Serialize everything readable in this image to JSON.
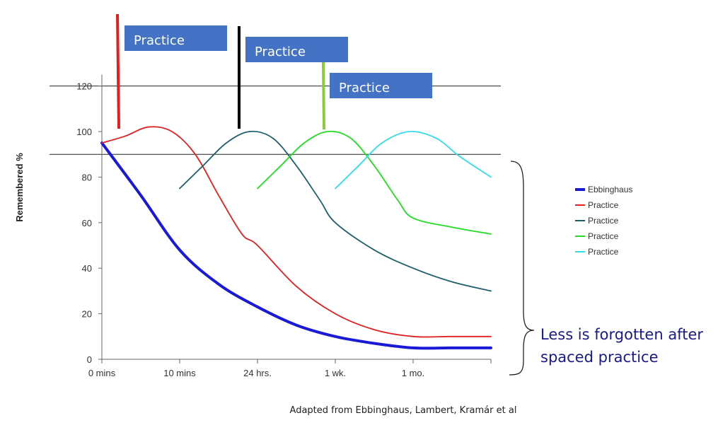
{
  "chart_data": {
    "type": "line",
    "title": "",
    "xlabel": "",
    "ylabel": "Remembered %",
    "x_categories": [
      "0 mins",
      "10 mins",
      "24 hrs.",
      "1 wk.",
      "1 mo."
    ],
    "ylim": [
      0,
      125
    ],
    "y_ticks": [
      0,
      20,
      40,
      60,
      80,
      100,
      120
    ],
    "reference_lines": [
      120,
      90
    ],
    "legend_position": "right",
    "series": [
      {
        "name": "Ebbinghaus",
        "color": "#1a1ad6",
        "points": [
          [
            0,
            95
          ],
          [
            0.5,
            72
          ],
          [
            1,
            48
          ],
          [
            1.5,
            33
          ],
          [
            2,
            23
          ],
          [
            2.5,
            15
          ],
          [
            3,
            10
          ],
          [
            3.5,
            7
          ],
          [
            4,
            5
          ],
          [
            4.5,
            5
          ],
          [
            5,
            5
          ]
        ]
      },
      {
        "name": "Practice",
        "color": "#e02020",
        "points": [
          [
            0,
            95
          ],
          [
            0.3,
            98
          ],
          [
            0.6,
            102
          ],
          [
            0.9,
            100
          ],
          [
            1.2,
            90
          ],
          [
            1.5,
            72
          ],
          [
            1.8,
            55
          ],
          [
            2,
            50
          ],
          [
            2.5,
            32
          ],
          [
            3,
            20
          ],
          [
            3.5,
            13
          ],
          [
            4,
            10
          ],
          [
            4.5,
            10
          ],
          [
            5,
            10
          ]
        ]
      },
      {
        "name": "Practice",
        "color": "#1f5f6b",
        "points": [
          [
            1,
            75
          ],
          [
            1.3,
            85
          ],
          [
            1.6,
            95
          ],
          [
            1.9,
            100
          ],
          [
            2.2,
            97
          ],
          [
            2.5,
            85
          ],
          [
            2.8,
            70
          ],
          [
            3,
            60
          ],
          [
            3.5,
            48
          ],
          [
            4,
            40
          ],
          [
            4.5,
            34
          ],
          [
            5,
            30
          ]
        ]
      },
      {
        "name": "Practice",
        "color": "#22dd22",
        "points": [
          [
            2,
            75
          ],
          [
            2.3,
            85
          ],
          [
            2.6,
            95
          ],
          [
            2.9,
            100
          ],
          [
            3.2,
            97
          ],
          [
            3.5,
            85
          ],
          [
            3.8,
            70
          ],
          [
            4,
            62
          ],
          [
            4.5,
            58
          ],
          [
            5,
            55
          ]
        ]
      },
      {
        "name": "Practice",
        "color": "#33dde6",
        "points": [
          [
            3,
            75
          ],
          [
            3.3,
            85
          ],
          [
            3.6,
            95
          ],
          [
            3.95,
            100
          ],
          [
            4.3,
            97
          ],
          [
            4.6,
            89
          ],
          [
            5,
            80
          ]
        ]
      }
    ]
  },
  "callouts": [
    {
      "label": "Practice",
      "color": "#4472c4",
      "marker_color": "#e02020"
    },
    {
      "label": "Practice",
      "color": "#4472c4",
      "marker_color": "#000000"
    },
    {
      "label": "Practice",
      "color": "#4472c4",
      "marker_color": "#88cc44"
    }
  ],
  "note": {
    "line1": "Less is forgotten after",
    "line2": "spaced practice",
    "color": "#1a1a8c"
  },
  "source": "Adapted from Ebbinghaus, Lambert, Kramár et al"
}
